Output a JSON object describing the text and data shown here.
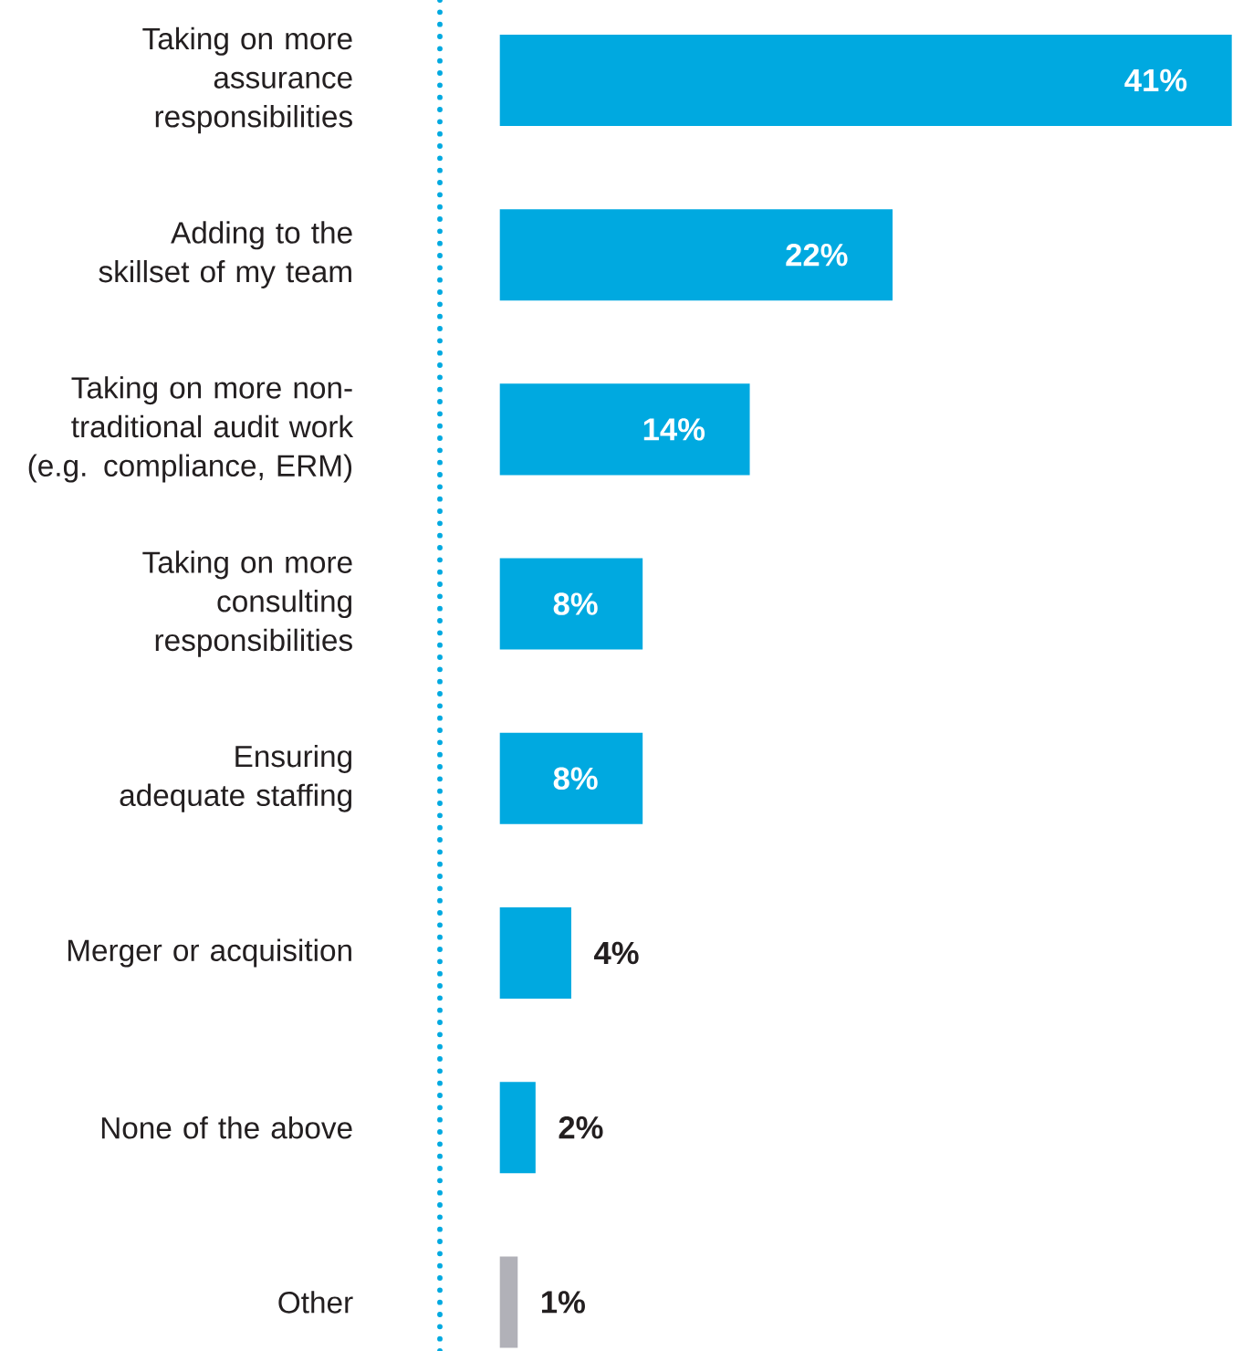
{
  "chart_data": {
    "type": "bar",
    "orientation": "horizontal",
    "data_labels": true,
    "categories": [
      "Taking on more assurance responsibilities",
      "Adding to the skillset of my team",
      "Taking on more non-traditional audit work (e.g. compliance, ERM)",
      "Taking on more consulting responsibilities",
      "Ensuring adequate staffing",
      "Merger or acquisition",
      "None of the above",
      "Other"
    ],
    "values": [
      41,
      22,
      14,
      8,
      8,
      4,
      2,
      1
    ],
    "value_labels": [
      "41%",
      "22%",
      "14%",
      "8%",
      "8%",
      "4%",
      "2%",
      "1%"
    ],
    "colors": [
      "#00a9e0",
      "#00a9e0",
      "#00a9e0",
      "#00a9e0",
      "#00a9e0",
      "#00a9e0",
      "#00a9e0",
      "#b1b1b8"
    ]
  }
}
